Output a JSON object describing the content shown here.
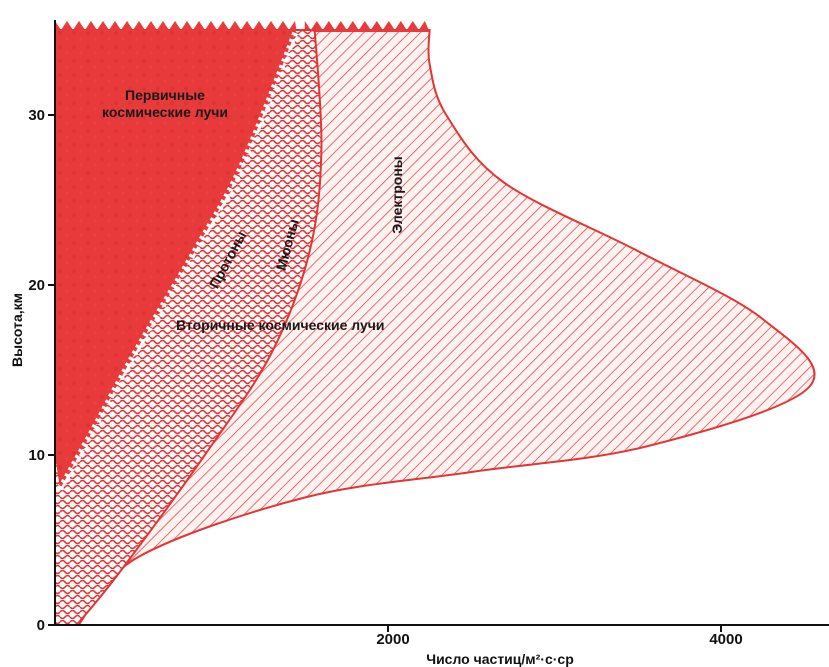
{
  "chart_data": {
    "type": "area",
    "xlabel": "Число частиц/м²·с·ср",
    "ylabel": "Высота,км",
    "xlim": [
      0,
      4500
    ],
    "ylim": [
      0,
      35
    ],
    "xticks": [
      "2000",
      "4000"
    ],
    "yticks": [
      "0",
      "10",
      "20",
      "30"
    ],
    "grid": false,
    "colors": {
      "fill": "#e83a3a",
      "hatch": "#e33535",
      "background": "#ffffff",
      "text": "#111111"
    },
    "annotations": {
      "primary": [
        "Первичные",
        "космические лучи"
      ],
      "secondary": "Вторичные космические лучи",
      "protons": "Протоны",
      "muons": "Мюоны",
      "electrons": "Электроны"
    },
    "series": [
      {
        "name": "Первичные космические лучи",
        "x": [
          0,
          0,
          0,
          0,
          0
        ],
        "y": [
          10,
          15,
          20,
          25,
          35
        ]
      },
      {
        "name": "Протоны",
        "x": [
          30,
          230,
          480,
          840,
          1120,
          1450
        ],
        "y": [
          8,
          11.5,
          16,
          22,
          27,
          35
        ]
      },
      {
        "name": "Мюоны",
        "x": [
          130,
          380,
          900,
          1300,
          1530,
          1600,
          1560
        ],
        "y": [
          0,
          3,
          10,
          16,
          22,
          28,
          35
        ]
      },
      {
        "name": "Электроны",
        "x": [
          140,
          500,
          1500,
          2500,
          3550,
          4530,
          4250,
          3500,
          2700,
          2350,
          2250,
          2250
        ],
        "y": [
          0,
          4,
          7.5,
          9,
          10.5,
          14,
          18,
          22,
          26,
          30,
          33,
          35
        ]
      }
    ]
  }
}
